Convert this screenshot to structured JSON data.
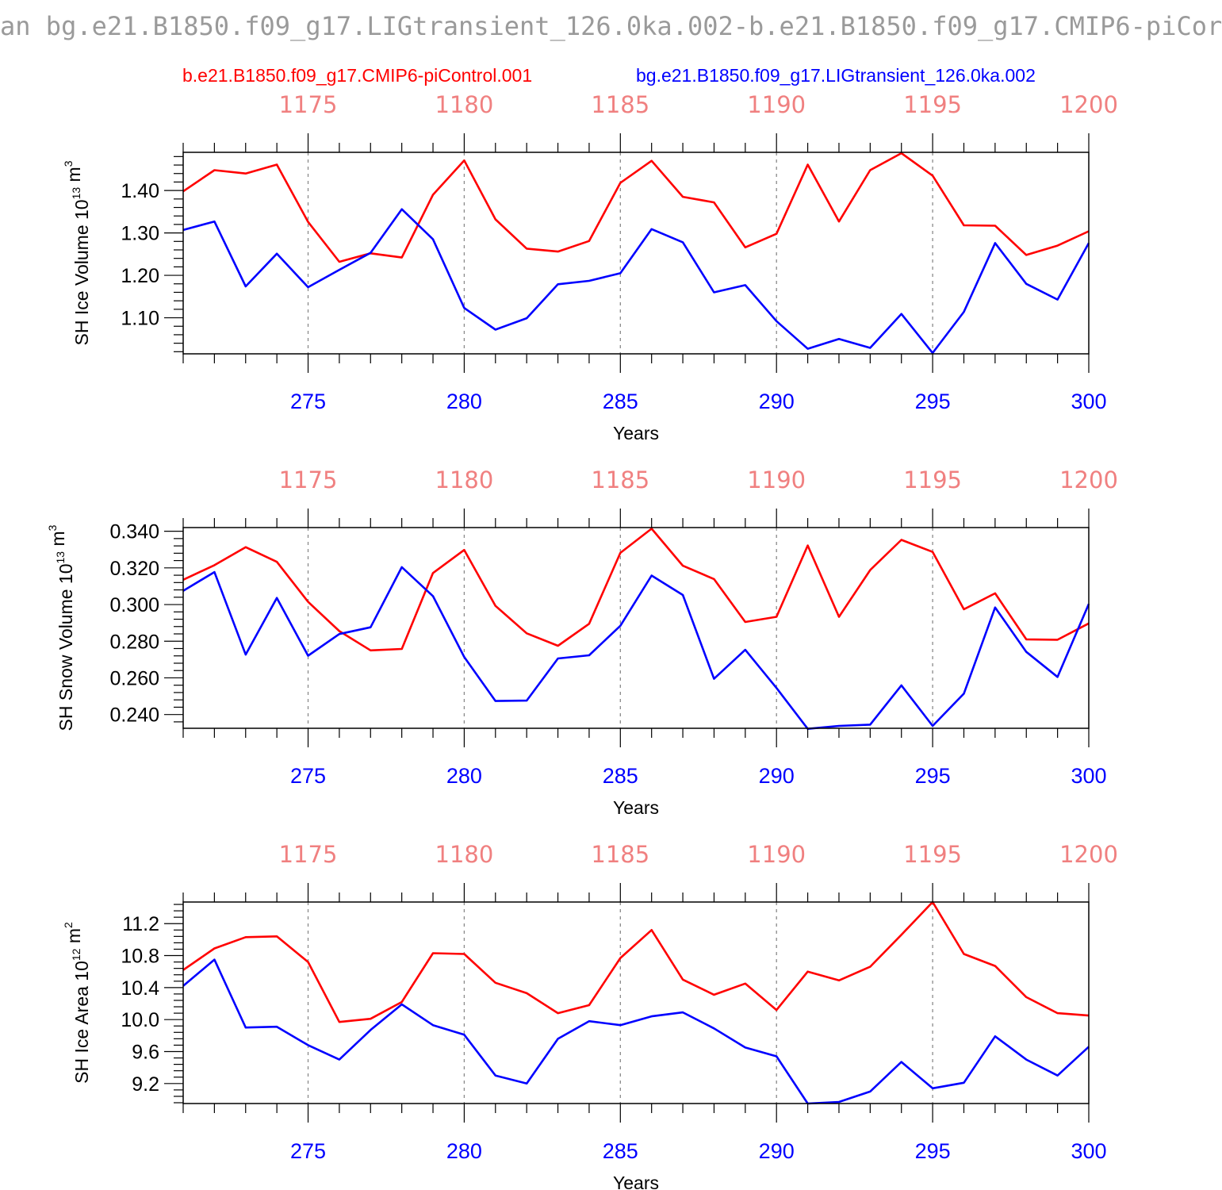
{
  "title": "an bg.e21.B1850.f09_g17.LIGtransient_126.0ka.002-b.e21.B1850.f09_g17.CMIP6-piCor",
  "legend": {
    "red": "b.e21.B1850.f09_g17.CMIP6-piControl.001",
    "blue": "bg.e21.B1850.f09_g17.LIGtransient_126.0ka.002"
  },
  "colors": {
    "red": "#ff0000",
    "blue": "#0000ff",
    "top_ticks": "#f08080"
  },
  "chart_data": [
    {
      "type": "line",
      "ylabel": "SH Ice Volume 10^13 m^3",
      "xlabel": "Years",
      "x": [
        271,
        272,
        273,
        274,
        275,
        276,
        277,
        278,
        279,
        280,
        281,
        282,
        283,
        284,
        285,
        286,
        287,
        288,
        289,
        290,
        291,
        292,
        293,
        294,
        295,
        296,
        297,
        298,
        299,
        300
      ],
      "xlim": [
        271,
        300
      ],
      "ylim": [
        1.015,
        1.49
      ],
      "yticks": [
        1.1,
        1.2,
        1.3,
        1.4
      ],
      "ytick_labels": [
        "1.10",
        "1.20",
        "1.30",
        "1.40"
      ],
      "xticks": [
        275,
        280,
        285,
        290,
        295,
        300
      ],
      "top_ticks": [
        1175,
        1180,
        1185,
        1190,
        1195,
        1200
      ],
      "series": [
        {
          "name": "b.e21.B1850.f09_g17.CMIP6-piControl.001",
          "color": "red",
          "values": [
            1.398,
            1.448,
            1.44,
            1.461,
            1.326,
            1.232,
            1.252,
            1.242,
            1.39,
            1.471,
            1.332,
            1.263,
            1.256,
            1.281,
            1.418,
            1.47,
            1.385,
            1.372,
            1.266,
            1.298,
            1.461,
            1.327,
            1.448,
            1.488,
            1.435,
            1.318,
            1.317,
            1.248,
            1.27,
            1.304
          ]
        },
        {
          "name": "bg.e21.B1850.f09_g17.LIGtransient_126.0ka.002",
          "color": "blue",
          "values": [
            1.307,
            1.327,
            1.174,
            1.251,
            1.172,
            1.213,
            1.253,
            1.356,
            1.285,
            1.123,
            1.072,
            1.099,
            1.179,
            1.187,
            1.205,
            1.309,
            1.278,
            1.16,
            1.177,
            1.092,
            1.027,
            1.05,
            1.029,
            1.109,
            1.017,
            1.114,
            1.276,
            1.18,
            1.143,
            1.276
          ]
        }
      ]
    },
    {
      "type": "line",
      "ylabel": "SH Snow Volume 10^13 m^3",
      "xlabel": "Years",
      "x": [
        271,
        272,
        273,
        274,
        275,
        276,
        277,
        278,
        279,
        280,
        281,
        282,
        283,
        284,
        285,
        286,
        287,
        288,
        289,
        290,
        291,
        292,
        293,
        294,
        295,
        296,
        297,
        298,
        299,
        300
      ],
      "xlim": [
        271,
        300
      ],
      "ylim": [
        0.2325,
        0.342
      ],
      "yticks": [
        0.24,
        0.26,
        0.28,
        0.3,
        0.32,
        0.34
      ],
      "ytick_labels": [
        "0.240",
        "0.260",
        "0.280",
        "0.300",
        "0.320",
        "0.340"
      ],
      "xticks": [
        275,
        280,
        285,
        290,
        295,
        300
      ],
      "top_ticks": [
        1175,
        1180,
        1185,
        1190,
        1195,
        1200
      ],
      "series": [
        {
          "name": "b.e21.B1850.f09_g17.CMIP6-piControl.001",
          "color": "red",
          "values": [
            0.3135,
            0.3215,
            0.3313,
            0.3233,
            0.3015,
            0.2855,
            0.275,
            0.2758,
            0.3172,
            0.3298,
            0.2993,
            0.2843,
            0.2775,
            0.2895,
            0.3282,
            0.3414,
            0.3212,
            0.3139,
            0.2905,
            0.2933,
            0.3322,
            0.2933,
            0.3188,
            0.3353,
            0.3287,
            0.2974,
            0.3061,
            0.281,
            0.2808,
            0.2897
          ]
        },
        {
          "name": "bg.e21.B1850.f09_g17.LIGtransient_126.0ka.002",
          "color": "blue",
          "values": [
            0.3075,
            0.3177,
            0.2727,
            0.3036,
            0.2721,
            0.2839,
            0.2876,
            0.3204,
            0.3046,
            0.2714,
            0.2474,
            0.2476,
            0.2706,
            0.2723,
            0.2884,
            0.3158,
            0.3052,
            0.2595,
            0.2753,
            0.2545,
            0.2322,
            0.2338,
            0.2345,
            0.2559,
            0.2338,
            0.2514,
            0.2984,
            0.2742,
            0.2605,
            0.3003
          ]
        }
      ]
    },
    {
      "type": "line",
      "ylabel": "SH Ice Area 10^12 m^2",
      "xlabel": "Years",
      "x": [
        271,
        272,
        273,
        274,
        275,
        276,
        277,
        278,
        279,
        280,
        281,
        282,
        283,
        284,
        285,
        286,
        287,
        288,
        289,
        290,
        291,
        292,
        293,
        294,
        295,
        296,
        297,
        298,
        299,
        300
      ],
      "xlim": [
        271,
        300
      ],
      "ylim": [
        8.95,
        11.47
      ],
      "yticks": [
        9.2,
        9.6,
        10.0,
        10.4,
        10.8,
        11.2
      ],
      "ytick_labels": [
        "9.2",
        "9.6",
        "10.0",
        "10.4",
        "10.8",
        "11.2"
      ],
      "xticks": [
        275,
        280,
        285,
        290,
        295,
        300
      ],
      "top_ticks": [
        1175,
        1180,
        1185,
        1190,
        1195,
        1200
      ],
      "series": [
        {
          "name": "b.e21.B1850.f09_g17.CMIP6-piControl.001",
          "color": "red",
          "values": [
            10.62,
            10.89,
            11.03,
            11.04,
            10.72,
            9.97,
            10.01,
            10.22,
            10.83,
            10.82,
            10.46,
            10.33,
            10.08,
            10.18,
            10.77,
            11.12,
            10.5,
            10.31,
            10.45,
            10.12,
            10.6,
            10.49,
            10.66,
            11.06,
            11.47,
            10.82,
            10.67,
            10.28,
            10.08,
            10.05
          ]
        },
        {
          "name": "bg.e21.B1850.f09_g17.LIGtransient_126.0ka.002",
          "color": "blue",
          "values": [
            10.42,
            10.75,
            9.9,
            9.91,
            9.68,
            9.5,
            9.87,
            10.19,
            9.93,
            9.81,
            9.3,
            9.2,
            9.76,
            9.98,
            9.93,
            10.04,
            10.09,
            9.89,
            9.65,
            9.54,
            8.95,
            8.97,
            9.1,
            9.47,
            9.14,
            9.21,
            9.79,
            9.5,
            9.3,
            9.66
          ]
        }
      ]
    }
  ]
}
